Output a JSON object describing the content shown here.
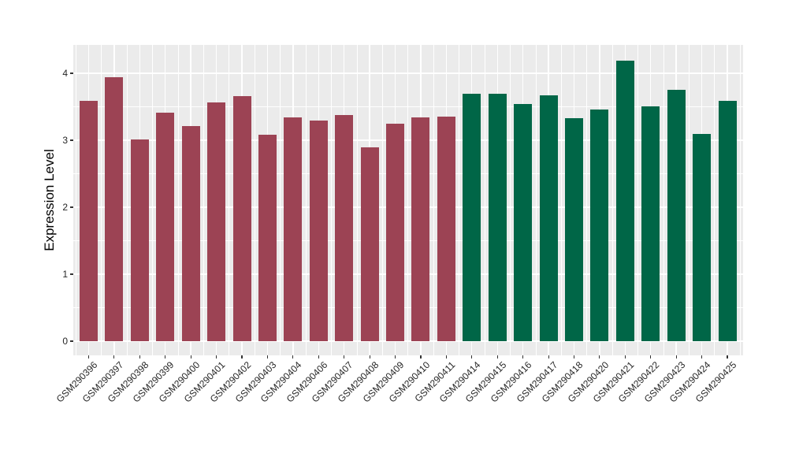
{
  "chart_data": {
    "type": "bar",
    "title": "",
    "xlabel": "",
    "ylabel": "Expression Level",
    "ylim": [
      0,
      4.41
    ],
    "yticks": [
      0,
      1,
      2,
      3,
      4
    ],
    "grid": true,
    "legend_position": "none",
    "panel_background": "#EBEBEB",
    "gridline_color": "#FFFFFF",
    "tick_color": "#333333",
    "axis_text_color": "#262626",
    "categories": [
      "GSM290396",
      "GSM290397",
      "GSM290398",
      "GSM290399",
      "GSM290400",
      "GSM290401",
      "GSM290402",
      "GSM290403",
      "GSM290404",
      "GSM290406",
      "GSM290407",
      "GSM290408",
      "GSM290409",
      "GSM290410",
      "GSM290411",
      "GSM290414",
      "GSM290415",
      "GSM290416",
      "GSM290417",
      "GSM290418",
      "GSM290420",
      "GSM290421",
      "GSM290422",
      "GSM290423",
      "GSM290424",
      "GSM290425"
    ],
    "values": [
      3.59,
      3.94,
      3.01,
      3.41,
      3.21,
      3.56,
      3.66,
      3.08,
      3.34,
      3.3,
      3.38,
      2.89,
      3.25,
      3.34,
      3.35,
      3.7,
      3.7,
      3.54,
      3.67,
      3.33,
      3.46,
      4.19,
      3.51,
      3.75,
      3.09,
      3.59
    ],
    "bar_groups": [
      "group1",
      "group1",
      "group1",
      "group1",
      "group1",
      "group1",
      "group1",
      "group1",
      "group1",
      "group1",
      "group1",
      "group1",
      "group1",
      "group1",
      "group1",
      "group2",
      "group2",
      "group2",
      "group2",
      "group2",
      "group2",
      "group2",
      "group2",
      "group2",
      "group2",
      "group2"
    ],
    "group_colors": {
      "group1": "#9C4354",
      "group2": "#006647"
    }
  }
}
